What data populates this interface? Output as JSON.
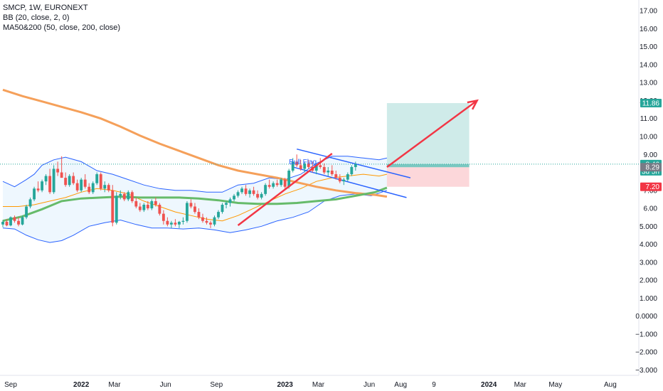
{
  "legend": {
    "symbol_line": "SMCP, 1W, EURONEXT",
    "bb_line": "BB (20, close, 2, 0)",
    "ma_line": "MA50&200 (50, close, 200, close)"
  },
  "chart_data": {
    "type": "candlestick",
    "y_ticks": [
      "17.00",
      "16.00",
      "15.00",
      "14.00",
      "13.00",
      "12.00",
      "11.00",
      "10.00",
      "9.00",
      "8.00",
      "7.00",
      "6.00",
      "5.000",
      "4.000",
      "3.000",
      "2.000",
      "1.000",
      "0.0000",
      "−1.000",
      "−2.000",
      "−3.000"
    ],
    "y_tick_values": [
      17,
      16,
      15,
      14,
      13,
      12,
      11,
      10,
      9,
      8,
      7,
      6,
      5,
      4,
      3,
      2,
      1,
      0,
      -1,
      -2,
      -3
    ],
    "ylim": [
      -3.3,
      17.6
    ],
    "x_ticks": [
      {
        "label": "Sep",
        "bold": false,
        "t": 2.0
      },
      {
        "label": "2022",
        "bold": true,
        "t": 20.0
      },
      {
        "label": "Mar",
        "bold": false,
        "t": 28.5
      },
      {
        "label": "Jun",
        "bold": false,
        "t": 41.5
      },
      {
        "label": "Sep",
        "bold": false,
        "t": 54.5
      },
      {
        "label": "2023",
        "bold": true,
        "t": 72.0
      },
      {
        "label": "Mar",
        "bold": false,
        "t": 80.5
      },
      {
        "label": "Jun",
        "bold": false,
        "t": 93.5
      },
      {
        "label": "Aug",
        "bold": false,
        "t": 101.5
      },
      {
        "label": "9",
        "bold": false,
        "t": 110.0
      },
      {
        "label": "2024",
        "bold": true,
        "t": 124.0
      },
      {
        "label": "Mar",
        "bold": false,
        "t": 132.0
      },
      {
        "label": "May",
        "bold": false,
        "t": 141.0
      },
      {
        "label": "Aug",
        "bold": false,
        "t": 155.0
      },
      {
        "label": "O",
        "bold": false,
        "t": 162.0
      }
    ],
    "price_labels": [
      {
        "value": 11.86,
        "text": "11.86",
        "color": "#26a69a"
      },
      {
        "value": 8.46,
        "text": "8.46",
        "sub": "3d 5h",
        "color": "#26a69a"
      },
      {
        "value": 8.29,
        "text": "8.29",
        "color": "#787b86"
      },
      {
        "value": 7.2,
        "text": "7.20",
        "color": "#f23645"
      }
    ],
    "current_price": 8.46,
    "annotation": "Bull Flag",
    "position_tool": {
      "t_start": 98,
      "t_end": 119,
      "entry": 8.29,
      "target": 11.86,
      "stop": 7.2,
      "last": 8.46
    },
    "ma200": [
      [
        0,
        12.6
      ],
      [
        5,
        12.25
      ],
      [
        10,
        11.95
      ],
      [
        15,
        11.65
      ],
      [
        20,
        11.35
      ],
      [
        25,
        11.0
      ],
      [
        30,
        10.55
      ],
      [
        35,
        10.05
      ],
      [
        40,
        9.6
      ],
      [
        45,
        9.2
      ],
      [
        50,
        8.8
      ],
      [
        55,
        8.4
      ],
      [
        60,
        8.1
      ],
      [
        65,
        7.9
      ],
      [
        70,
        7.7
      ],
      [
        75,
        7.45
      ],
      [
        80,
        7.2
      ],
      [
        85,
        7.0
      ],
      [
        90,
        6.85
      ],
      [
        95,
        6.75
      ],
      [
        98,
        6.65
      ]
    ],
    "ma50": [
      [
        0,
        5.3
      ],
      [
        5,
        5.55
      ],
      [
        10,
        5.95
      ],
      [
        15,
        6.4
      ],
      [
        20,
        6.55
      ],
      [
        25,
        6.6
      ],
      [
        30,
        6.65
      ],
      [
        35,
        6.6
      ],
      [
        40,
        6.6
      ],
      [
        45,
        6.6
      ],
      [
        50,
        6.55
      ],
      [
        55,
        6.45
      ],
      [
        60,
        6.3
      ],
      [
        65,
        6.25
      ],
      [
        70,
        6.25
      ],
      [
        75,
        6.3
      ],
      [
        80,
        6.4
      ],
      [
        85,
        6.5
      ],
      [
        90,
        6.7
      ],
      [
        95,
        6.9
      ],
      [
        98,
        7.15
      ]
    ],
    "bb_upper": [
      [
        0,
        7.5
      ],
      [
        3,
        7.2
      ],
      [
        6,
        7.6
      ],
      [
        8,
        7.9
      ],
      [
        10,
        8.4
      ],
      [
        13,
        8.7
      ],
      [
        16,
        8.85
      ],
      [
        20,
        8.6
      ],
      [
        24,
        8.1
      ],
      [
        28,
        7.9
      ],
      [
        32,
        7.6
      ],
      [
        36,
        7.3
      ],
      [
        40,
        7.1
      ],
      [
        44,
        7.0
      ],
      [
        48,
        7.0
      ],
      [
        52,
        6.9
      ],
      [
        56,
        6.9
      ],
      [
        60,
        7.3
      ],
      [
        64,
        7.4
      ],
      [
        68,
        7.7
      ],
      [
        72,
        7.6
      ],
      [
        76,
        7.9
      ],
      [
        80,
        8.5
      ],
      [
        84,
        8.9
      ],
      [
        88,
        8.9
      ],
      [
        92,
        8.8
      ],
      [
        96,
        8.7
      ],
      [
        98,
        8.8
      ]
    ],
    "bb_lower": [
      [
        0,
        4.9
      ],
      [
        3,
        4.85
      ],
      [
        6,
        4.5
      ],
      [
        9,
        4.25
      ],
      [
        12,
        4.1
      ],
      [
        15,
        4.2
      ],
      [
        18,
        4.5
      ],
      [
        22,
        5.0
      ],
      [
        26,
        5.2
      ],
      [
        30,
        5.35
      ],
      [
        34,
        5.1
      ],
      [
        38,
        4.9
      ],
      [
        42,
        4.9
      ],
      [
        46,
        4.85
      ],
      [
        50,
        4.9
      ],
      [
        54,
        4.8
      ],
      [
        58,
        4.65
      ],
      [
        62,
        4.8
      ],
      [
        66,
        5.0
      ],
      [
        70,
        5.3
      ],
      [
        74,
        5.5
      ],
      [
        78,
        5.8
      ],
      [
        82,
        6.4
      ],
      [
        86,
        6.7
      ],
      [
        90,
        6.8
      ],
      [
        94,
        6.7
      ],
      [
        98,
        7.0
      ]
    ],
    "bb_mid": [
      [
        0,
        6.1
      ],
      [
        4,
        6.1
      ],
      [
        8,
        6.2
      ],
      [
        12,
        6.4
      ],
      [
        16,
        6.6
      ],
      [
        20,
        6.9
      ],
      [
        24,
        7.1
      ],
      [
        28,
        7.0
      ],
      [
        32,
        6.8
      ],
      [
        36,
        6.4
      ],
      [
        40,
        6.1
      ],
      [
        44,
        5.8
      ],
      [
        48,
        5.6
      ],
      [
        52,
        5.4
      ],
      [
        56,
        5.3
      ],
      [
        60,
        5.6
      ],
      [
        64,
        6.0
      ],
      [
        68,
        6.4
      ],
      [
        72,
        6.8
      ],
      [
        76,
        7.1
      ],
      [
        80,
        7.5
      ],
      [
        84,
        7.7
      ],
      [
        88,
        7.8
      ],
      [
        92,
        7.9
      ],
      [
        96,
        7.8
      ],
      [
        98,
        7.9
      ]
    ],
    "candles": [
      {
        "t": 0,
        "o": 5.1,
        "h": 5.35,
        "l": 4.95,
        "c": 5.25
      },
      {
        "t": 1,
        "o": 5.25,
        "h": 5.4,
        "l": 5.0,
        "c": 5.05
      },
      {
        "t": 2,
        "o": 5.05,
        "h": 5.55,
        "l": 5.0,
        "c": 5.5
      },
      {
        "t": 3,
        "o": 5.5,
        "h": 5.6,
        "l": 5.2,
        "c": 5.3
      },
      {
        "t": 4,
        "o": 5.3,
        "h": 5.5,
        "l": 5.0,
        "c": 5.1
      },
      {
        "t": 5,
        "o": 5.1,
        "h": 5.6,
        "l": 5.05,
        "c": 5.5
      },
      {
        "t": 6,
        "o": 5.5,
        "h": 6.2,
        "l": 5.4,
        "c": 6.1
      },
      {
        "t": 7,
        "o": 6.1,
        "h": 6.6,
        "l": 6.0,
        "c": 6.5
      },
      {
        "t": 8,
        "o": 6.5,
        "h": 7.2,
        "l": 6.4,
        "c": 7.1
      },
      {
        "t": 9,
        "o": 7.1,
        "h": 7.5,
        "l": 6.9,
        "c": 7.0
      },
      {
        "t": 10,
        "o": 7.0,
        "h": 7.6,
        "l": 6.9,
        "c": 7.5
      },
      {
        "t": 11,
        "o": 7.5,
        "h": 7.9,
        "l": 7.3,
        "c": 7.8
      },
      {
        "t": 12,
        "o": 7.8,
        "h": 8.2,
        "l": 6.8,
        "c": 6.9
      },
      {
        "t": 13,
        "o": 6.9,
        "h": 8.4,
        "l": 6.8,
        "c": 8.2
      },
      {
        "t": 14,
        "o": 8.2,
        "h": 8.6,
        "l": 7.8,
        "c": 8.0
      },
      {
        "t": 15,
        "o": 8.0,
        "h": 8.9,
        "l": 7.9,
        "c": 7.7
      },
      {
        "t": 16,
        "o": 7.7,
        "h": 8.0,
        "l": 7.2,
        "c": 7.3
      },
      {
        "t": 17,
        "o": 7.3,
        "h": 7.9,
        "l": 7.2,
        "c": 7.8
      },
      {
        "t": 18,
        "o": 7.8,
        "h": 8.0,
        "l": 7.3,
        "c": 7.4
      },
      {
        "t": 19,
        "o": 7.4,
        "h": 7.6,
        "l": 6.9,
        "c": 7.0
      },
      {
        "t": 20,
        "o": 7.0,
        "h": 7.7,
        "l": 6.9,
        "c": 7.6
      },
      {
        "t": 21,
        "o": 7.6,
        "h": 7.9,
        "l": 7.1,
        "c": 7.2
      },
      {
        "t": 22,
        "o": 7.2,
        "h": 7.4,
        "l": 6.8,
        "c": 6.9
      },
      {
        "t": 23,
        "o": 6.9,
        "h": 7.5,
        "l": 6.8,
        "c": 7.4
      },
      {
        "t": 24,
        "o": 7.4,
        "h": 8.0,
        "l": 7.3,
        "c": 7.9
      },
      {
        "t": 25,
        "o": 7.9,
        "h": 8.0,
        "l": 7.0,
        "c": 7.1
      },
      {
        "t": 26,
        "o": 7.1,
        "h": 7.5,
        "l": 6.9,
        "c": 7.3
      },
      {
        "t": 27,
        "o": 7.3,
        "h": 7.4,
        "l": 6.9,
        "c": 7.0
      },
      {
        "t": 28,
        "o": 7.0,
        "h": 7.3,
        "l": 5.0,
        "c": 5.2
      },
      {
        "t": 29,
        "o": 5.2,
        "h": 6.9,
        "l": 5.1,
        "c": 6.7
      },
      {
        "t": 30,
        "o": 6.7,
        "h": 7.0,
        "l": 6.5,
        "c": 6.8
      },
      {
        "t": 31,
        "o": 6.8,
        "h": 6.9,
        "l": 6.4,
        "c": 6.5
      },
      {
        "t": 32,
        "o": 6.5,
        "h": 7.0,
        "l": 6.4,
        "c": 6.9
      },
      {
        "t": 33,
        "o": 6.9,
        "h": 7.0,
        "l": 6.3,
        "c": 6.4
      },
      {
        "t": 34,
        "o": 6.4,
        "h": 6.6,
        "l": 6.0,
        "c": 6.1
      },
      {
        "t": 35,
        "o": 6.1,
        "h": 6.3,
        "l": 5.8,
        "c": 5.9
      },
      {
        "t": 36,
        "o": 5.9,
        "h": 6.3,
        "l": 5.8,
        "c": 6.2
      },
      {
        "t": 37,
        "o": 6.2,
        "h": 6.4,
        "l": 5.9,
        "c": 6.0
      },
      {
        "t": 38,
        "o": 6.0,
        "h": 6.5,
        "l": 5.9,
        "c": 6.4
      },
      {
        "t": 39,
        "o": 6.4,
        "h": 6.6,
        "l": 6.1,
        "c": 6.2
      },
      {
        "t": 40,
        "o": 6.2,
        "h": 6.3,
        "l": 5.6,
        "c": 5.7
      },
      {
        "t": 41,
        "o": 5.7,
        "h": 5.9,
        "l": 5.1,
        "c": 5.3
      },
      {
        "t": 42,
        "o": 5.3,
        "h": 5.5,
        "l": 5.0,
        "c": 5.1
      },
      {
        "t": 43,
        "o": 5.1,
        "h": 5.3,
        "l": 4.9,
        "c": 5.2
      },
      {
        "t": 44,
        "o": 5.2,
        "h": 5.4,
        "l": 5.0,
        "c": 5.1
      },
      {
        "t": 45,
        "o": 5.1,
        "h": 5.3,
        "l": 4.9,
        "c": 5.25
      },
      {
        "t": 46,
        "o": 5.25,
        "h": 5.5,
        "l": 5.1,
        "c": 5.3
      },
      {
        "t": 47,
        "o": 5.3,
        "h": 6.4,
        "l": 5.2,
        "c": 6.3
      },
      {
        "t": 48,
        "o": 6.3,
        "h": 6.5,
        "l": 6.0,
        "c": 6.1
      },
      {
        "t": 49,
        "o": 6.1,
        "h": 6.3,
        "l": 5.7,
        "c": 5.8
      },
      {
        "t": 50,
        "o": 5.8,
        "h": 6.0,
        "l": 5.4,
        "c": 5.5
      },
      {
        "t": 51,
        "o": 5.5,
        "h": 5.7,
        "l": 5.2,
        "c": 5.3
      },
      {
        "t": 52,
        "o": 5.3,
        "h": 5.5,
        "l": 5.1,
        "c": 5.2
      },
      {
        "t": 53,
        "o": 5.2,
        "h": 5.3,
        "l": 4.9,
        "c": 5.1
      },
      {
        "t": 54,
        "o": 5.1,
        "h": 5.6,
        "l": 5.0,
        "c": 5.5
      },
      {
        "t": 55,
        "o": 5.5,
        "h": 5.9,
        "l": 5.4,
        "c": 5.8
      },
      {
        "t": 56,
        "o": 5.8,
        "h": 6.3,
        "l": 5.7,
        "c": 6.2
      },
      {
        "t": 57,
        "o": 6.2,
        "h": 6.4,
        "l": 6.0,
        "c": 6.3
      },
      {
        "t": 58,
        "o": 6.3,
        "h": 6.6,
        "l": 6.1,
        "c": 6.5
      },
      {
        "t": 59,
        "o": 6.5,
        "h": 6.8,
        "l": 6.4,
        "c": 6.7
      },
      {
        "t": 60,
        "o": 6.7,
        "h": 7.0,
        "l": 6.6,
        "c": 6.9
      },
      {
        "t": 61,
        "o": 6.9,
        "h": 7.2,
        "l": 6.8,
        "c": 7.1
      },
      {
        "t": 62,
        "o": 7.1,
        "h": 7.3,
        "l": 6.7,
        "c": 6.8
      },
      {
        "t": 63,
        "o": 6.8,
        "h": 7.1,
        "l": 6.6,
        "c": 7.0
      },
      {
        "t": 64,
        "o": 7.0,
        "h": 7.2,
        "l": 6.7,
        "c": 6.8
      },
      {
        "t": 65,
        "o": 6.8,
        "h": 7.0,
        "l": 6.5,
        "c": 6.6
      },
      {
        "t": 66,
        "o": 6.6,
        "h": 6.9,
        "l": 6.5,
        "c": 6.8
      },
      {
        "t": 67,
        "o": 6.8,
        "h": 7.4,
        "l": 6.7,
        "c": 7.3
      },
      {
        "t": 68,
        "o": 7.3,
        "h": 7.6,
        "l": 7.1,
        "c": 7.2
      },
      {
        "t": 69,
        "o": 7.2,
        "h": 7.5,
        "l": 7.1,
        "c": 7.4
      },
      {
        "t": 70,
        "o": 7.4,
        "h": 7.6,
        "l": 7.2,
        "c": 7.3
      },
      {
        "t": 71,
        "o": 7.3,
        "h": 7.7,
        "l": 7.2,
        "c": 7.6
      },
      {
        "t": 72,
        "o": 7.6,
        "h": 7.7,
        "l": 7.1,
        "c": 7.2
      },
      {
        "t": 73,
        "o": 7.2,
        "h": 8.2,
        "l": 7.1,
        "c": 8.1
      },
      {
        "t": 74,
        "o": 8.1,
        "h": 8.8,
        "l": 8.0,
        "c": 8.6
      },
      {
        "t": 75,
        "o": 8.6,
        "h": 9.0,
        "l": 8.3,
        "c": 8.4
      },
      {
        "t": 76,
        "o": 8.4,
        "h": 8.7,
        "l": 8.1,
        "c": 8.2
      },
      {
        "t": 77,
        "o": 8.2,
        "h": 8.6,
        "l": 8.0,
        "c": 8.5
      },
      {
        "t": 78,
        "o": 8.5,
        "h": 8.7,
        "l": 8.2,
        "c": 8.3
      },
      {
        "t": 79,
        "o": 8.3,
        "h": 8.6,
        "l": 8.0,
        "c": 8.1
      },
      {
        "t": 80,
        "o": 8.1,
        "h": 8.5,
        "l": 7.9,
        "c": 8.4
      },
      {
        "t": 81,
        "o": 8.4,
        "h": 8.8,
        "l": 8.2,
        "c": 8.3
      },
      {
        "t": 82,
        "o": 8.3,
        "h": 8.5,
        "l": 7.9,
        "c": 8.0
      },
      {
        "t": 83,
        "o": 8.0,
        "h": 8.3,
        "l": 7.8,
        "c": 8.1
      },
      {
        "t": 84,
        "o": 8.1,
        "h": 8.4,
        "l": 7.8,
        "c": 7.9
      },
      {
        "t": 85,
        "o": 7.9,
        "h": 8.1,
        "l": 7.6,
        "c": 7.7
      },
      {
        "t": 86,
        "o": 7.7,
        "h": 7.9,
        "l": 7.4,
        "c": 7.5
      },
      {
        "t": 87,
        "o": 7.5,
        "h": 7.7,
        "l": 7.3,
        "c": 7.6
      },
      {
        "t": 88,
        "o": 7.6,
        "h": 8.0,
        "l": 7.5,
        "c": 7.9
      },
      {
        "t": 89,
        "o": 7.9,
        "h": 8.4,
        "l": 7.8,
        "c": 8.3
      },
      {
        "t": 90,
        "o": 8.3,
        "h": 8.6,
        "l": 8.1,
        "c": 8.46
      }
    ]
  }
}
